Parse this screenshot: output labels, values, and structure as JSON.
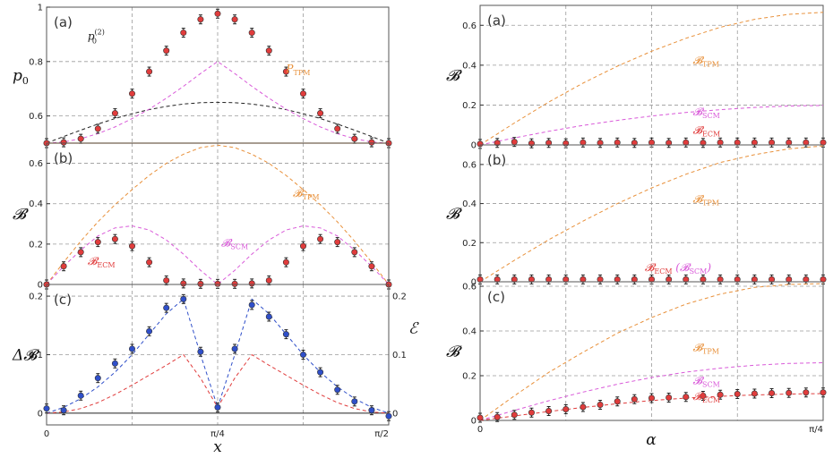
{
  "figure": {
    "x_axis_label": "x",
    "alpha_axis_label": "α"
  },
  "colors": {
    "red": "#e03c3c",
    "blue": "#2f4fc9",
    "orange": "#e8903a",
    "magenta": "#d95ad9",
    "black": "#222222",
    "grid": "#9a9a9a"
  },
  "chart_data": [
    {
      "id": "left-a",
      "panel_label": "(a)",
      "type": "line",
      "ylabel": "p0",
      "xlim": [
        0,
        1.5708
      ],
      "ylim": [
        0.5,
        1.0
      ],
      "yticks": [
        0.6,
        0.8,
        1
      ],
      "ytick_labels": [
        "0.6",
        "0.8",
        "1"
      ],
      "series": [
        {
          "name": "p0(2)",
          "style": "black-dashed",
          "x": [
            0,
            0.0785,
            0.1571,
            0.2356,
            0.3142,
            0.3927,
            0.4712,
            0.5498,
            0.6283,
            0.7069,
            0.7854,
            0.8639,
            0.9425,
            1.021,
            1.0996,
            1.1781,
            1.2566,
            1.3352,
            1.4137,
            1.4923,
            1.5708
          ],
          "y": [
            0.5,
            0.5245,
            0.5478,
            0.5701,
            0.5904,
            0.6081,
            0.6232,
            0.635,
            0.6436,
            0.6488,
            0.65,
            0.6488,
            0.6436,
            0.635,
            0.6232,
            0.6081,
            0.5904,
            0.5701,
            0.5478,
            0.5245,
            0.5
          ]
        },
        {
          "name": "SCM",
          "style": "magenta-dashed",
          "x": [
            0,
            0.0785,
            0.1571,
            0.2356,
            0.3142,
            0.3927,
            0.4712,
            0.5498,
            0.6283,
            0.7069,
            0.7854,
            0.8639,
            0.9425,
            1.021,
            1.0996,
            1.1781,
            1.2566,
            1.3352,
            1.4137,
            1.4923,
            1.5708
          ],
          "y": [
            0.5,
            0.504,
            0.5163,
            0.535,
            0.5597,
            0.59,
            0.625,
            0.665,
            0.709,
            0.756,
            0.8,
            0.756,
            0.709,
            0.665,
            0.625,
            0.59,
            0.5597,
            0.535,
            0.5163,
            0.504,
            0.5
          ]
        },
        {
          "name": "P_TPM",
          "style": "orange-solid",
          "x": [
            0,
            1.5708
          ],
          "y": [
            0.5,
            0.5
          ]
        },
        {
          "name": "ECM data",
          "style": "red-points",
          "x": [
            0,
            0.0785,
            0.1571,
            0.2356,
            0.3142,
            0.3927,
            0.4712,
            0.5498,
            0.6283,
            0.7069,
            0.7854,
            0.8639,
            0.9425,
            1.021,
            1.0996,
            1.1781,
            1.2566,
            1.3352,
            1.4137,
            1.4923,
            1.5708
          ],
          "y": [
            0.5,
            0.503,
            0.516,
            0.553,
            0.61,
            0.682,
            0.763,
            0.84,
            0.906,
            0.955,
            0.976,
            0.955,
            0.906,
            0.84,
            0.763,
            0.682,
            0.61,
            0.553,
            0.516,
            0.503,
            0.5
          ]
        }
      ],
      "annotations": [
        {
          "text": "p",
          "sub": "0",
          "sup": "(2)",
          "color": "black",
          "x": 0.12,
          "y": 0.76
        },
        {
          "text": "P",
          "sub": "TPM",
          "color": "orange",
          "x": 0.7,
          "y": 0.52
        }
      ]
    },
    {
      "id": "left-b",
      "panel_label": "(b)",
      "type": "line",
      "ylabel": "𝓑",
      "xlim": [
        0,
        1.5708
      ],
      "ylim": [
        0,
        0.7
      ],
      "yticks": [
        0,
        0.2,
        0.4,
        0.6
      ],
      "ytick_labels": [
        "0",
        "0.2",
        "0.4",
        "0.6"
      ],
      "series": [
        {
          "name": "TPM",
          "style": "orange-dashed",
          "x": [
            0,
            0.0785,
            0.1571,
            0.2356,
            0.3142,
            0.3927,
            0.4712,
            0.5498,
            0.6283,
            0.7069,
            0.7854,
            0.8639,
            0.9425,
            1.021,
            1.0996,
            1.1781,
            1.2566,
            1.3352,
            1.4137,
            1.4923,
            1.5708
          ],
          "y": [
            0,
            0.11,
            0.215,
            0.31,
            0.395,
            0.47,
            0.54,
            0.6,
            0.645,
            0.678,
            0.69,
            0.678,
            0.645,
            0.6,
            0.54,
            0.47,
            0.395,
            0.31,
            0.215,
            0.11,
            0
          ]
        },
        {
          "name": "SCM",
          "style": "magenta-dashed",
          "x": [
            0,
            0.0785,
            0.1571,
            0.2356,
            0.3142,
            0.3927,
            0.4712,
            0.5498,
            0.6283,
            0.7069,
            0.7854,
            0.8639,
            0.9425,
            1.021,
            1.0996,
            1.1781,
            1.2566,
            1.3352,
            1.4137,
            1.4923,
            1.5708
          ],
          "y": [
            0,
            0.09,
            0.17,
            0.24,
            0.28,
            0.29,
            0.27,
            0.22,
            0.15,
            0.07,
            0,
            0.07,
            0.15,
            0.22,
            0.27,
            0.29,
            0.28,
            0.24,
            0.17,
            0.09,
            0
          ]
        },
        {
          "name": "ECM data",
          "style": "red-points",
          "x": [
            0,
            0.0785,
            0.1571,
            0.2356,
            0.3142,
            0.3927,
            0.4712,
            0.5498,
            0.6283,
            0.7069,
            0.7854,
            0.8639,
            0.9425,
            1.021,
            1.0996,
            1.1781,
            1.2566,
            1.3352,
            1.4137,
            1.4923,
            1.5708
          ],
          "y": [
            0,
            0.09,
            0.16,
            0.21,
            0.225,
            0.19,
            0.11,
            0.02,
            0.005,
            0.003,
            0.003,
            0.003,
            0.005,
            0.02,
            0.11,
            0.19,
            0.225,
            0.21,
            0.16,
            0.09,
            0
          ]
        }
      ],
      "annotations": [
        {
          "text": "𝓑",
          "sub": "TPM",
          "color": "orange",
          "x": 0.72,
          "y": 0.62
        },
        {
          "text": "𝓑",
          "sub": "SCM",
          "color": "magenta",
          "x": 0.51,
          "y": 0.27
        },
        {
          "text": "𝓑",
          "sub": "ECM",
          "color": "red",
          "x": 0.12,
          "y": 0.14
        }
      ]
    },
    {
      "id": "left-c",
      "panel_label": "(c)",
      "type": "line",
      "ylabel": "Δ𝓑",
      "ylabel_right": "ℰ",
      "xlim": [
        0,
        1.5708
      ],
      "ylim": [
        -0.02,
        0.22
      ],
      "yticks": [
        0,
        0.1,
        0.2
      ],
      "ytick_labels": [
        "0",
        "0.1",
        "0.2"
      ],
      "xticks": [
        0,
        0.7854,
        1.5708
      ],
      "xtick_labels": [
        "0",
        "π/4",
        "π/2"
      ],
      "series": [
        {
          "name": "ℰ",
          "style": "red-dashed",
          "x": [
            0,
            0.0785,
            0.1571,
            0.2356,
            0.3142,
            0.3927,
            0.4712,
            0.5498,
            0.6283,
            0.7069,
            0.7854,
            0.8639,
            0.9425,
            1.021,
            1.0996,
            1.1781,
            1.2566,
            1.3352,
            1.4137,
            1.4923,
            1.5708
          ],
          "y": [
            0,
            0.002,
            0.008,
            0.018,
            0.032,
            0.048,
            0.065,
            0.082,
            0.1,
            0.06,
            0.01,
            0.06,
            0.1,
            0.082,
            0.065,
            0.048,
            0.032,
            0.018,
            0.008,
            0.002,
            0
          ]
        },
        {
          "name": "ΔB fit",
          "style": "blue-dashed",
          "x": [
            0,
            0.0785,
            0.1571,
            0.2356,
            0.3142,
            0.3927,
            0.4712,
            0.5498,
            0.6283,
            0.7069,
            0.7854,
            0.8639,
            0.9425,
            1.021,
            1.0996,
            1.1781,
            1.2566,
            1.3352,
            1.4137,
            1.4923,
            1.5708
          ],
          "y": [
            0,
            0.01,
            0.025,
            0.045,
            0.07,
            0.1,
            0.135,
            0.17,
            0.195,
            0.1,
            0.01,
            0.1,
            0.195,
            0.17,
            0.135,
            0.1,
            0.07,
            0.045,
            0.025,
            0.01,
            0
          ]
        },
        {
          "name": "ΔB data",
          "style": "blue-points",
          "x": [
            0,
            0.0785,
            0.1571,
            0.2356,
            0.3142,
            0.3927,
            0.4712,
            0.5498,
            0.6283,
            0.7069,
            0.7854,
            0.8639,
            0.9425,
            1.021,
            1.0996,
            1.1781,
            1.2566,
            1.3352,
            1.4137,
            1.4923,
            1.5708
          ],
          "y": [
            0.008,
            0.005,
            0.03,
            0.06,
            0.085,
            0.11,
            0.14,
            0.18,
            0.195,
            0.105,
            0.01,
            0.11,
            0.185,
            0.165,
            0.135,
            0.1,
            0.07,
            0.04,
            0.02,
            0.005,
            -0.005
          ]
        }
      ]
    },
    {
      "id": "right-a",
      "panel_label": "(a)",
      "type": "line",
      "ylabel": "𝓑",
      "xlim": [
        0,
        0.7854
      ],
      "ylim": [
        0,
        0.7
      ],
      "yticks": [
        0,
        0.2,
        0.4,
        0.6
      ],
      "ytick_labels": [
        "0",
        "0.2",
        "0.4",
        "0.6"
      ],
      "series": [
        {
          "name": "TPM",
          "style": "orange-dashed",
          "x": [
            0,
            0.0785,
            0.1571,
            0.2356,
            0.3142,
            0.3927,
            0.4712,
            0.5498,
            0.6283,
            0.7069,
            0.7854
          ],
          "y": [
            0,
            0.11,
            0.215,
            0.31,
            0.395,
            0.47,
            0.535,
            0.59,
            0.63,
            0.655,
            0.665
          ]
        },
        {
          "name": "SCM",
          "style": "magenta-dashed",
          "x": [
            0,
            0.0785,
            0.1571,
            0.2356,
            0.3142,
            0.3927,
            0.4712,
            0.5498,
            0.6283,
            0.7069,
            0.7854
          ],
          "y": [
            0,
            0.035,
            0.068,
            0.098,
            0.123,
            0.145,
            0.163,
            0.177,
            0.188,
            0.195,
            0.198
          ]
        },
        {
          "name": "ECM data",
          "style": "red-points",
          "x": [
            0,
            0.0393,
            0.0785,
            0.1178,
            0.1571,
            0.1963,
            0.2356,
            0.2749,
            0.3142,
            0.3534,
            0.3927,
            0.432,
            0.4712,
            0.5105,
            0.5498,
            0.589,
            0.6283,
            0.6676,
            0.7069,
            0.7461,
            0.7854
          ],
          "y": [
            0.005,
            0.01,
            0.015,
            0.008,
            0.01,
            0.008,
            0.012,
            0.01,
            0.012,
            0.01,
            0.012,
            0.01,
            0.012,
            0.01,
            0.012,
            0.012,
            0.012,
            0.012,
            0.012,
            0.012,
            0.012
          ]
        }
      ],
      "annotations": [
        {
          "text": "𝓑",
          "sub": "TPM",
          "color": "orange",
          "x": 0.62,
          "y": 0.58
        },
        {
          "text": "𝓑",
          "sub": "SCM",
          "color": "magenta",
          "x": 0.62,
          "y": 0.21
        },
        {
          "text": "𝓑",
          "sub": "ECM",
          "color": "red",
          "x": 0.62,
          "y": 0.08
        }
      ]
    },
    {
      "id": "right-b",
      "panel_label": "(b)",
      "type": "line",
      "ylabel": "𝓑",
      "xlim": [
        0,
        0.7854
      ],
      "ylim": [
        0,
        0.7
      ],
      "yticks": [
        0,
        0.2,
        0.4,
        0.6
      ],
      "ytick_labels": [
        "0",
        "0.2",
        "0.4",
        "0.6"
      ],
      "series": [
        {
          "name": "TPM",
          "style": "orange-dashed",
          "x": [
            0,
            0.0785,
            0.1571,
            0.2356,
            0.3142,
            0.3927,
            0.4712,
            0.5498,
            0.6283,
            0.7069,
            0.7854
          ],
          "y": [
            0,
            0.11,
            0.215,
            0.31,
            0.4,
            0.48,
            0.55,
            0.61,
            0.65,
            0.68,
            0.695
          ]
        },
        {
          "name": "ECM data",
          "style": "red-points",
          "x": [
            0,
            0.0393,
            0.0785,
            0.1178,
            0.1571,
            0.1963,
            0.2356,
            0.2749,
            0.3142,
            0.3534,
            0.3927,
            0.432,
            0.4712,
            0.5105,
            0.5498,
            0.589,
            0.6283,
            0.6676,
            0.7069,
            0.7461,
            0.7854
          ],
          "y": [
            0.012,
            0.012,
            0.012,
            0.012,
            0.012,
            0.012,
            0.012,
            0.012,
            0.012,
            0.012,
            0.012,
            0.012,
            0.012,
            0.012,
            0.012,
            0.012,
            0.012,
            0.012,
            0.012,
            0.012,
            0.012
          ]
        }
      ],
      "annotations": [
        {
          "text": "𝓑",
          "sub": "TPM",
          "color": "orange",
          "x": 0.62,
          "y": 0.58
        },
        {
          "text": "𝓑",
          "sub": "ECM",
          "color": "red",
          "x": 0.48,
          "y": 0.08
        },
        {
          "text": "(𝓑",
          "sub": "SCM",
          "tail": ")",
          "color": "magenta",
          "x": 0.57,
          "y": 0.08
        }
      ]
    },
    {
      "id": "right-c",
      "panel_label": "(c)",
      "type": "line",
      "ylabel": "𝓑",
      "xlim": [
        0,
        0.7854
      ],
      "ylim": [
        0,
        0.62
      ],
      "yticks": [
        0,
        0.2,
        0.4,
        0.6
      ],
      "ytick_labels": [
        "0",
        "0.2",
        "0.4",
        "0.6"
      ],
      "xticks": [
        0,
        0.7854
      ],
      "xtick_labels": [
        "0",
        "π/4"
      ],
      "series": [
        {
          "name": "TPM",
          "style": "orange-dashed",
          "x": [
            0,
            0.0785,
            0.1571,
            0.2356,
            0.3142,
            0.3927,
            0.4712,
            0.5498,
            0.6283,
            0.7069,
            0.7854
          ],
          "y": [
            0,
            0.11,
            0.215,
            0.305,
            0.39,
            0.46,
            0.52,
            0.565,
            0.595,
            0.608,
            0.612
          ]
        },
        {
          "name": "SCM",
          "style": "magenta-dashed",
          "x": [
            0,
            0.0785,
            0.1571,
            0.2356,
            0.3142,
            0.3927,
            0.4712,
            0.5498,
            0.6283,
            0.7069,
            0.7854
          ],
          "y": [
            0,
            0.045,
            0.088,
            0.127,
            0.162,
            0.192,
            0.216,
            0.234,
            0.247,
            0.255,
            0.258
          ]
        },
        {
          "name": "ECM",
          "style": "red-dashed",
          "x": [
            0,
            0.0785,
            0.1571,
            0.2356,
            0.3142,
            0.3927,
            0.4712,
            0.5498,
            0.6283,
            0.7069,
            0.7854
          ],
          "y": [
            0,
            0.02,
            0.04,
            0.058,
            0.075,
            0.089,
            0.1,
            0.108,
            0.114,
            0.118,
            0.12
          ]
        },
        {
          "name": "ECM data",
          "style": "red-points",
          "x": [
            0,
            0.0393,
            0.0785,
            0.1178,
            0.1571,
            0.1963,
            0.2356,
            0.2749,
            0.3142,
            0.3534,
            0.3927,
            0.432,
            0.4712,
            0.5105,
            0.5498,
            0.589,
            0.6283,
            0.6676,
            0.7069,
            0.7461,
            0.7854
          ],
          "y": [
            0.012,
            0.015,
            0.025,
            0.035,
            0.042,
            0.05,
            0.06,
            0.07,
            0.085,
            0.095,
            0.1,
            0.102,
            0.105,
            0.11,
            0.115,
            0.118,
            0.12,
            0.122,
            0.123,
            0.125,
            0.125
          ]
        }
      ],
      "annotations": [
        {
          "text": "𝓑",
          "sub": "TPM",
          "color": "orange",
          "x": 0.62,
          "y": 0.5
        },
        {
          "text": "𝓑",
          "sub": "SCM",
          "color": "magenta",
          "x": 0.62,
          "y": 0.26
        },
        {
          "text": "𝓑",
          "sub": "ECM",
          "color": "red",
          "x": 0.62,
          "y": 0.15
        }
      ]
    }
  ]
}
